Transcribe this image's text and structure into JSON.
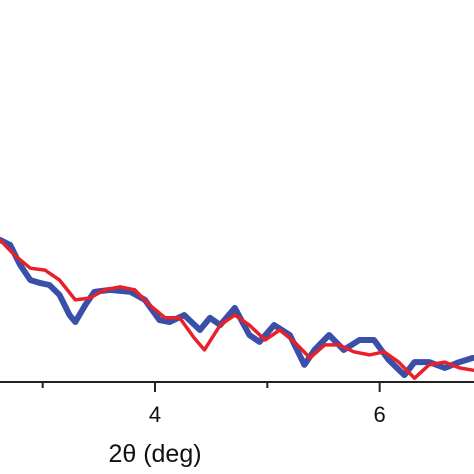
{
  "chart_data": {
    "type": "line",
    "x_label": "2θ (deg)",
    "xlim": [
      2.62,
      6.84
    ],
    "xticks": [
      4,
      6
    ],
    "minor_xticks": [
      3,
      5
    ],
    "ylim": [
      0,
      10
    ],
    "series": [
      {
        "color": "#3a4fa8",
        "x": [
          2.62,
          2.71,
          2.8,
          2.89,
          2.98,
          3.06,
          3.15,
          3.24,
          3.29,
          3.38,
          3.46,
          3.6,
          3.78,
          3.91,
          4.04,
          4.13,
          4.26,
          4.4,
          4.49,
          4.58,
          4.71,
          4.84,
          4.93,
          5.06,
          5.2,
          5.33,
          5.42,
          5.55,
          5.68,
          5.82,
          5.95,
          6.08,
          6.22,
          6.31,
          6.44,
          6.58,
          6.71,
          6.83
        ],
        "values": [
          3.72,
          3.59,
          3.06,
          2.67,
          2.59,
          2.54,
          2.28,
          1.75,
          1.57,
          2.02,
          2.36,
          2.41,
          2.36,
          2.15,
          1.62,
          1.57,
          1.75,
          1.36,
          1.68,
          1.49,
          1.94,
          1.23,
          1.05,
          1.49,
          1.23,
          0.45,
          0.84,
          1.23,
          0.84,
          1.1,
          1.1,
          0.58,
          0.18,
          0.52,
          0.52,
          0.37,
          0.52,
          0.63
        ]
      },
      {
        "color": "#e8202a",
        "x": [
          2.62,
          2.75,
          2.89,
          3.02,
          3.15,
          3.29,
          3.42,
          3.55,
          3.69,
          3.82,
          3.95,
          4.09,
          4.22,
          4.35,
          4.44,
          4.58,
          4.71,
          4.84,
          4.98,
          5.11,
          5.24,
          5.38,
          5.51,
          5.64,
          5.77,
          5.91,
          6.04,
          6.17,
          6.31,
          6.44,
          6.58,
          6.71,
          6.83
        ],
        "values": [
          3.72,
          3.32,
          2.98,
          2.93,
          2.67,
          2.15,
          2.2,
          2.41,
          2.49,
          2.41,
          2.02,
          1.68,
          1.68,
          1.15,
          0.84,
          1.49,
          1.75,
          1.49,
          1.1,
          1.36,
          1.05,
          0.63,
          0.97,
          0.97,
          0.79,
          0.71,
          0.79,
          0.52,
          0.1,
          0.45,
          0.52,
          0.37,
          0.31
        ]
      }
    ]
  }
}
